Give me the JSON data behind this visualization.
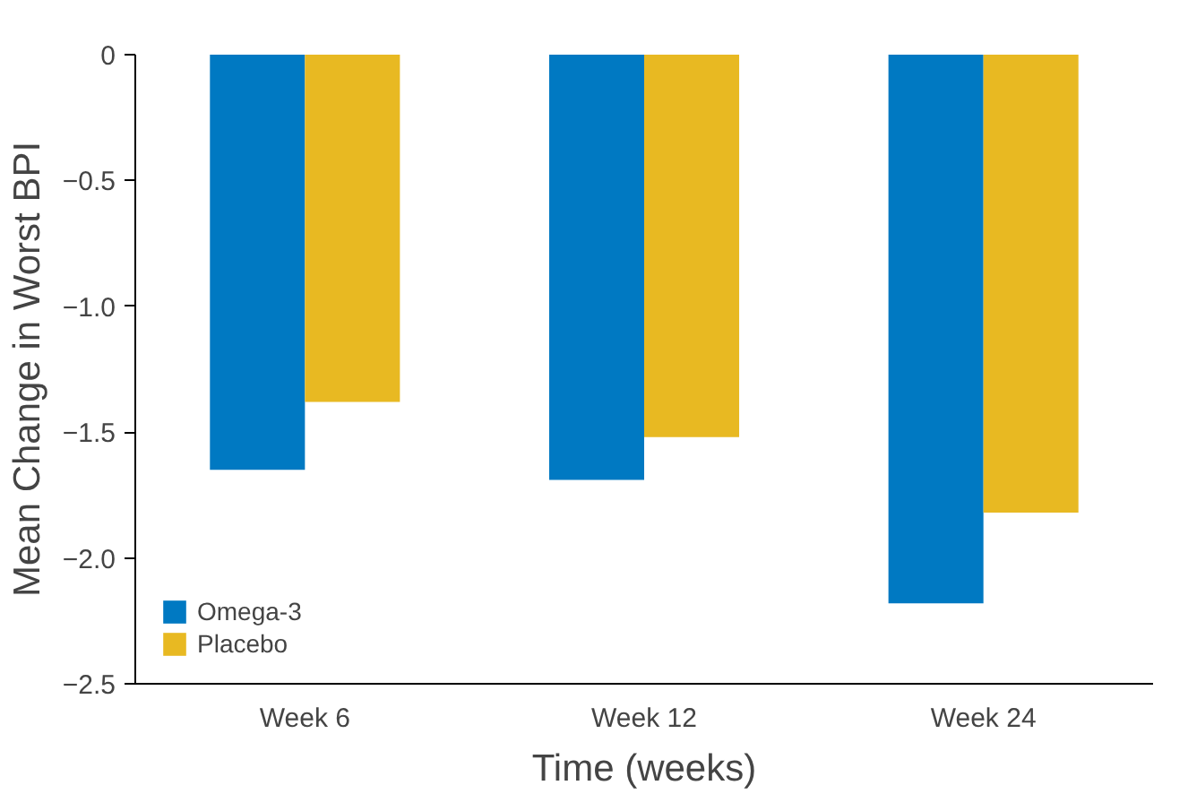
{
  "chart_data": {
    "type": "bar",
    "xlabel": "Time (weeks)",
    "ylabel": "Mean Change in Worst BPI",
    "categories": [
      "Week 6",
      "Week 12",
      "Week 24"
    ],
    "series": [
      {
        "name": "Omega-3",
        "color": "#0079c2",
        "values": [
          -1.65,
          -1.69,
          -2.18
        ]
      },
      {
        "name": "Placebo",
        "color": "#e8b922",
        "values": [
          -1.38,
          -1.52,
          -1.82
        ]
      }
    ],
    "ylim": [
      -2.5,
      0
    ],
    "yticks": [
      {
        "value": -2.5,
        "label": "−2.5"
      },
      {
        "value": -2.0,
        "label": "−2.0"
      },
      {
        "value": -1.5,
        "label": "−1.5"
      },
      {
        "value": -1.0,
        "label": "−1.0"
      },
      {
        "value": -0.5,
        "label": "−0.5"
      },
      0
    ],
    "grid": false,
    "legend": "bottom left"
  }
}
